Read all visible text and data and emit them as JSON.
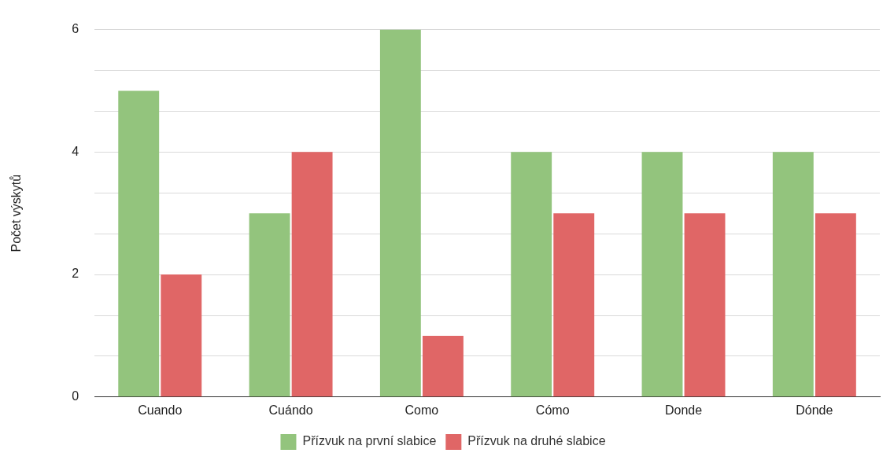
{
  "chart_data": {
    "type": "bar",
    "ylabel": "Počet výskytů",
    "categories": [
      "Cuando",
      "Cuándo",
      "Como",
      "Cómo",
      "Donde",
      "Dónde"
    ],
    "series": [
      {
        "name": "Přízvuk na první slabice",
        "color": "#93c47d",
        "values": [
          5,
          3,
          6,
          4,
          4,
          4
        ]
      },
      {
        "name": "Přízvuk na druhé slabice",
        "color": "#e06666",
        "values": [
          2,
          4,
          1,
          3,
          3,
          3
        ]
      }
    ],
    "ylim": [
      0,
      6
    ],
    "yticks": [
      0,
      {
        "value": 0.667,
        "label": null
      },
      {
        "value": 1.333,
        "label": null
      },
      2,
      {
        "value": 2.667,
        "label": null
      },
      {
        "value": 3.333,
        "label": null
      },
      4,
      {
        "value": 4.667,
        "label": null
      },
      {
        "value": 5.333,
        "label": null
      },
      6
    ],
    "grid": "y",
    "legend": "bottom"
  }
}
